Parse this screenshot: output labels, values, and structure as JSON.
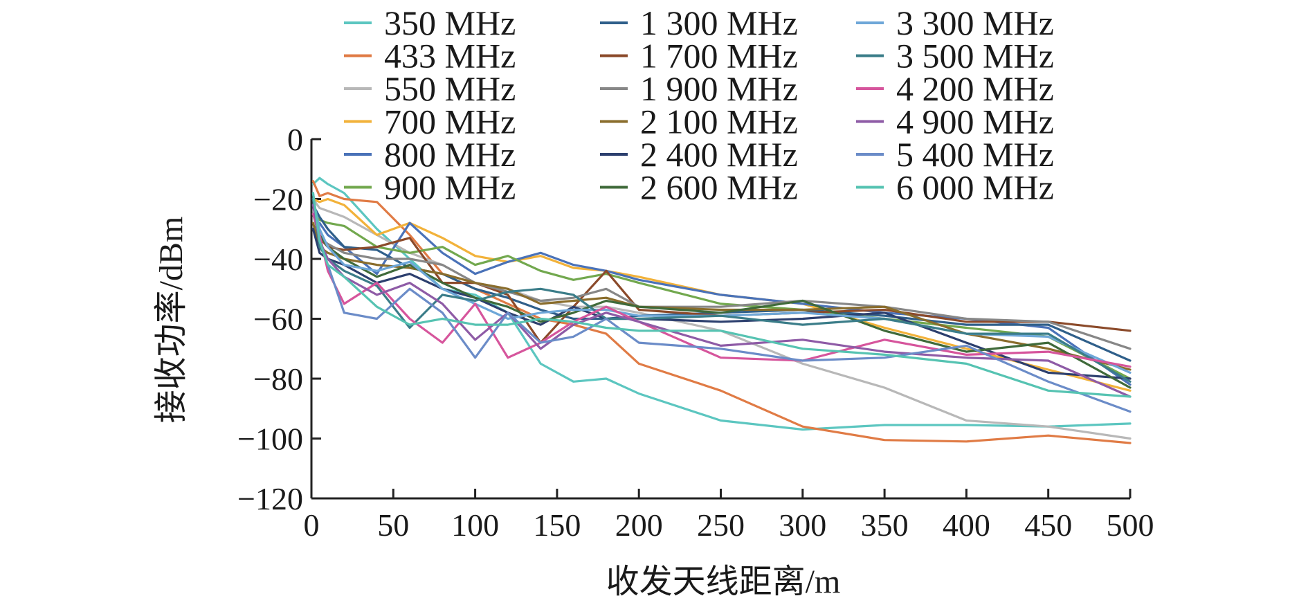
{
  "chart_data": {
    "type": "line",
    "title": "",
    "xlabel": "收发天线距离/m",
    "ylabel": "接收功率/dBm",
    "xlim": [
      0,
      500
    ],
    "ylim": [
      -120,
      0
    ],
    "xticks": [
      "0",
      "50",
      "100",
      "150",
      "200",
      "250",
      "300",
      "350",
      "400",
      "450",
      "500"
    ],
    "yticks": [
      "0",
      "−20",
      "−40",
      "−60",
      "−80",
      "−100",
      "−120"
    ],
    "grid": false,
    "legend_position": "top",
    "x": [
      1,
      5,
      10,
      20,
      40,
      60,
      80,
      100,
      120,
      140,
      160,
      180,
      200,
      250,
      300,
      350,
      400,
      450,
      500
    ],
    "series": [
      {
        "name": "350 MHz",
        "color": "#5cc6c0",
        "values": [
          -15,
          -13,
          -15,
          -18,
          -30,
          -40,
          -50,
          -52,
          -58,
          -75,
          -81,
          -80,
          -85,
          -94,
          -97,
          -95.5,
          -95.5,
          -96,
          -95
        ]
      },
      {
        "name": "433 MHz",
        "color": "#e07b45",
        "values": [
          -14,
          -19,
          -18,
          -20,
          -21,
          -32,
          -45,
          -50,
          -55,
          -60,
          -62,
          -65,
          -75,
          -84,
          -96,
          -100.5,
          -101,
          -99,
          -101.5
        ]
      },
      {
        "name": "550 MHz",
        "color": "#b8b8b8",
        "values": [
          -20,
          -23,
          -24,
          -26,
          -32,
          -38,
          -42,
          -48,
          -50,
          -54,
          -56,
          -56,
          -58,
          -64,
          -75,
          -83,
          -94,
          -96,
          -100
        ]
      },
      {
        "name": "700 MHz",
        "color": "#f2b23a",
        "values": [
          -20,
          -21,
          -20,
          -22,
          -32,
          -28,
          -33,
          -39,
          -41,
          -39,
          -43,
          -44,
          -46,
          -52,
          -55,
          -63,
          -70,
          -77,
          -84
        ]
      },
      {
        "name": "800 MHz",
        "color": "#4a72b8",
        "values": [
          -30,
          -28,
          -32,
          -36,
          -45,
          -28,
          -38,
          -45,
          -41,
          -38,
          -42,
          -44,
          -47,
          -52,
          -55,
          -58,
          -60,
          -63,
          -82
        ]
      },
      {
        "name": "900 MHz",
        "color": "#72a84e",
        "values": [
          -25,
          -27,
          -28,
          -29,
          -36,
          -38,
          -36,
          -42,
          -39,
          -44,
          -47,
          -45,
          -48,
          -55,
          -57,
          -60,
          -63,
          -66,
          -80
        ]
      },
      {
        "name": "1 300 MHz",
        "color": "#2f5f8a",
        "values": [
          -22,
          -26,
          -30,
          -36,
          -37,
          -43,
          -45,
          -50,
          -53,
          -57,
          -60,
          -60,
          -59,
          -58,
          -57,
          -59,
          -62,
          -62,
          -74
        ]
      },
      {
        "name": "1 700 MHz",
        "color": "#8b4a2a",
        "values": [
          -20,
          -33,
          -36,
          -37,
          -36,
          -33,
          -48,
          -48,
          -52,
          -68,
          -56,
          -44,
          -57,
          -59,
          -58,
          -57,
          -61,
          -61,
          -64
        ]
      },
      {
        "name": "1 900 MHz",
        "color": "#878787",
        "values": [
          -25,
          -33,
          -35,
          -38,
          -40,
          -40,
          -42,
          -48,
          -51,
          -54,
          -53,
          -50,
          -56,
          -56,
          -54,
          -56,
          -60,
          -61,
          -70
        ]
      },
      {
        "name": "2 100 MHz",
        "color": "#8a6d2c",
        "values": [
          -28,
          -36,
          -38,
          -40,
          -42,
          -43,
          -45,
          -48,
          -50,
          -55,
          -54,
          -53,
          -56,
          -57,
          -57,
          -56,
          -65,
          -70,
          -77
        ]
      },
      {
        "name": "2 400 MHz",
        "color": "#2c3f6e",
        "values": [
          -30,
          -38,
          -40,
          -42,
          -48,
          -45,
          -50,
          -53,
          -58,
          -62,
          -56,
          -60,
          -60,
          -61,
          -60,
          -58,
          -68,
          -78,
          -80
        ]
      },
      {
        "name": "2 600 MHz",
        "color": "#3f6a3a",
        "values": [
          -25,
          -32,
          -36,
          -40,
          -46,
          -42,
          -48,
          -53,
          -56,
          -61,
          -58,
          -54,
          -56,
          -58,
          -54,
          -64,
          -71,
          -68,
          -83
        ]
      },
      {
        "name": "3 300 MHz",
        "color": "#6ea7d8",
        "values": [
          -20,
          -30,
          -36,
          -42,
          -44,
          -41,
          -50,
          -55,
          -60,
          -58,
          -57,
          -57,
          -59,
          -59,
          -58,
          -60,
          -65,
          -66,
          -78
        ]
      },
      {
        "name": "3 500 MHz",
        "color": "#3b7d89",
        "values": [
          -20,
          -36,
          -40,
          -44,
          -49,
          -63,
          -52,
          -54,
          -51,
          -50,
          -52,
          -60,
          -60,
          -59,
          -62,
          -60,
          -65,
          -65,
          -81
        ]
      },
      {
        "name": "4 200 MHz",
        "color": "#d6559c",
        "values": [
          -25,
          -32,
          -44,
          -55,
          -48,
          -60,
          -68,
          -55,
          -73,
          -68,
          -61,
          -56,
          -61,
          -73,
          -74,
          -67,
          -72,
          -71,
          -76
        ]
      },
      {
        "name": "4 900 MHz",
        "color": "#8e5ba6",
        "values": [
          -22,
          -34,
          -40,
          -46,
          -52,
          -48,
          -55,
          -67,
          -58,
          -70,
          -62,
          -58,
          -61,
          -69,
          -67,
          -71,
          -73,
          -74,
          -86
        ]
      },
      {
        "name": "5 400 MHz",
        "color": "#6b8cc8",
        "values": [
          -18,
          -34,
          -42,
          -58,
          -60,
          -50,
          -58,
          -73,
          -58,
          -68,
          -66,
          -60,
          -68,
          -70,
          -74,
          -73,
          -69,
          -81,
          -91
        ]
      },
      {
        "name": "6 000 MHz",
        "color": "#56c3b2",
        "values": [
          -18,
          -34,
          -42,
          -46,
          -56,
          -62,
          -60,
          -62,
          -62,
          -60,
          -61,
          -63,
          -64,
          -64,
          -70,
          -72,
          -75,
          -84,
          -86
        ]
      }
    ]
  }
}
